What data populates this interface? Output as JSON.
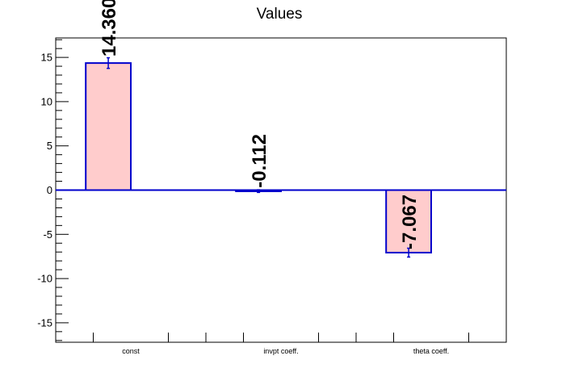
{
  "chart_data": {
    "type": "bar",
    "title": "Values",
    "xlabel": "",
    "ylabel": "",
    "categories": [
      "const",
      "invpt coeff.",
      "theta coeff."
    ],
    "values": [
      14.36,
      -0.112,
      -7.067
    ],
    "errors": [
      0.6,
      0.15,
      0.5
    ],
    "data_labels": [
      "14.360",
      "-0.112",
      "-7.067"
    ],
    "ylim": [
      -17.2,
      17.2
    ],
    "y_ticks": [
      -15,
      -10,
      -5,
      0,
      5,
      10,
      15
    ],
    "grid": false,
    "legend": "none",
    "colors": {
      "bar_fill": "#ffcccc",
      "bar_edge": "#0000cc",
      "baseline": "#0000cc",
      "axis": "#000000"
    }
  }
}
